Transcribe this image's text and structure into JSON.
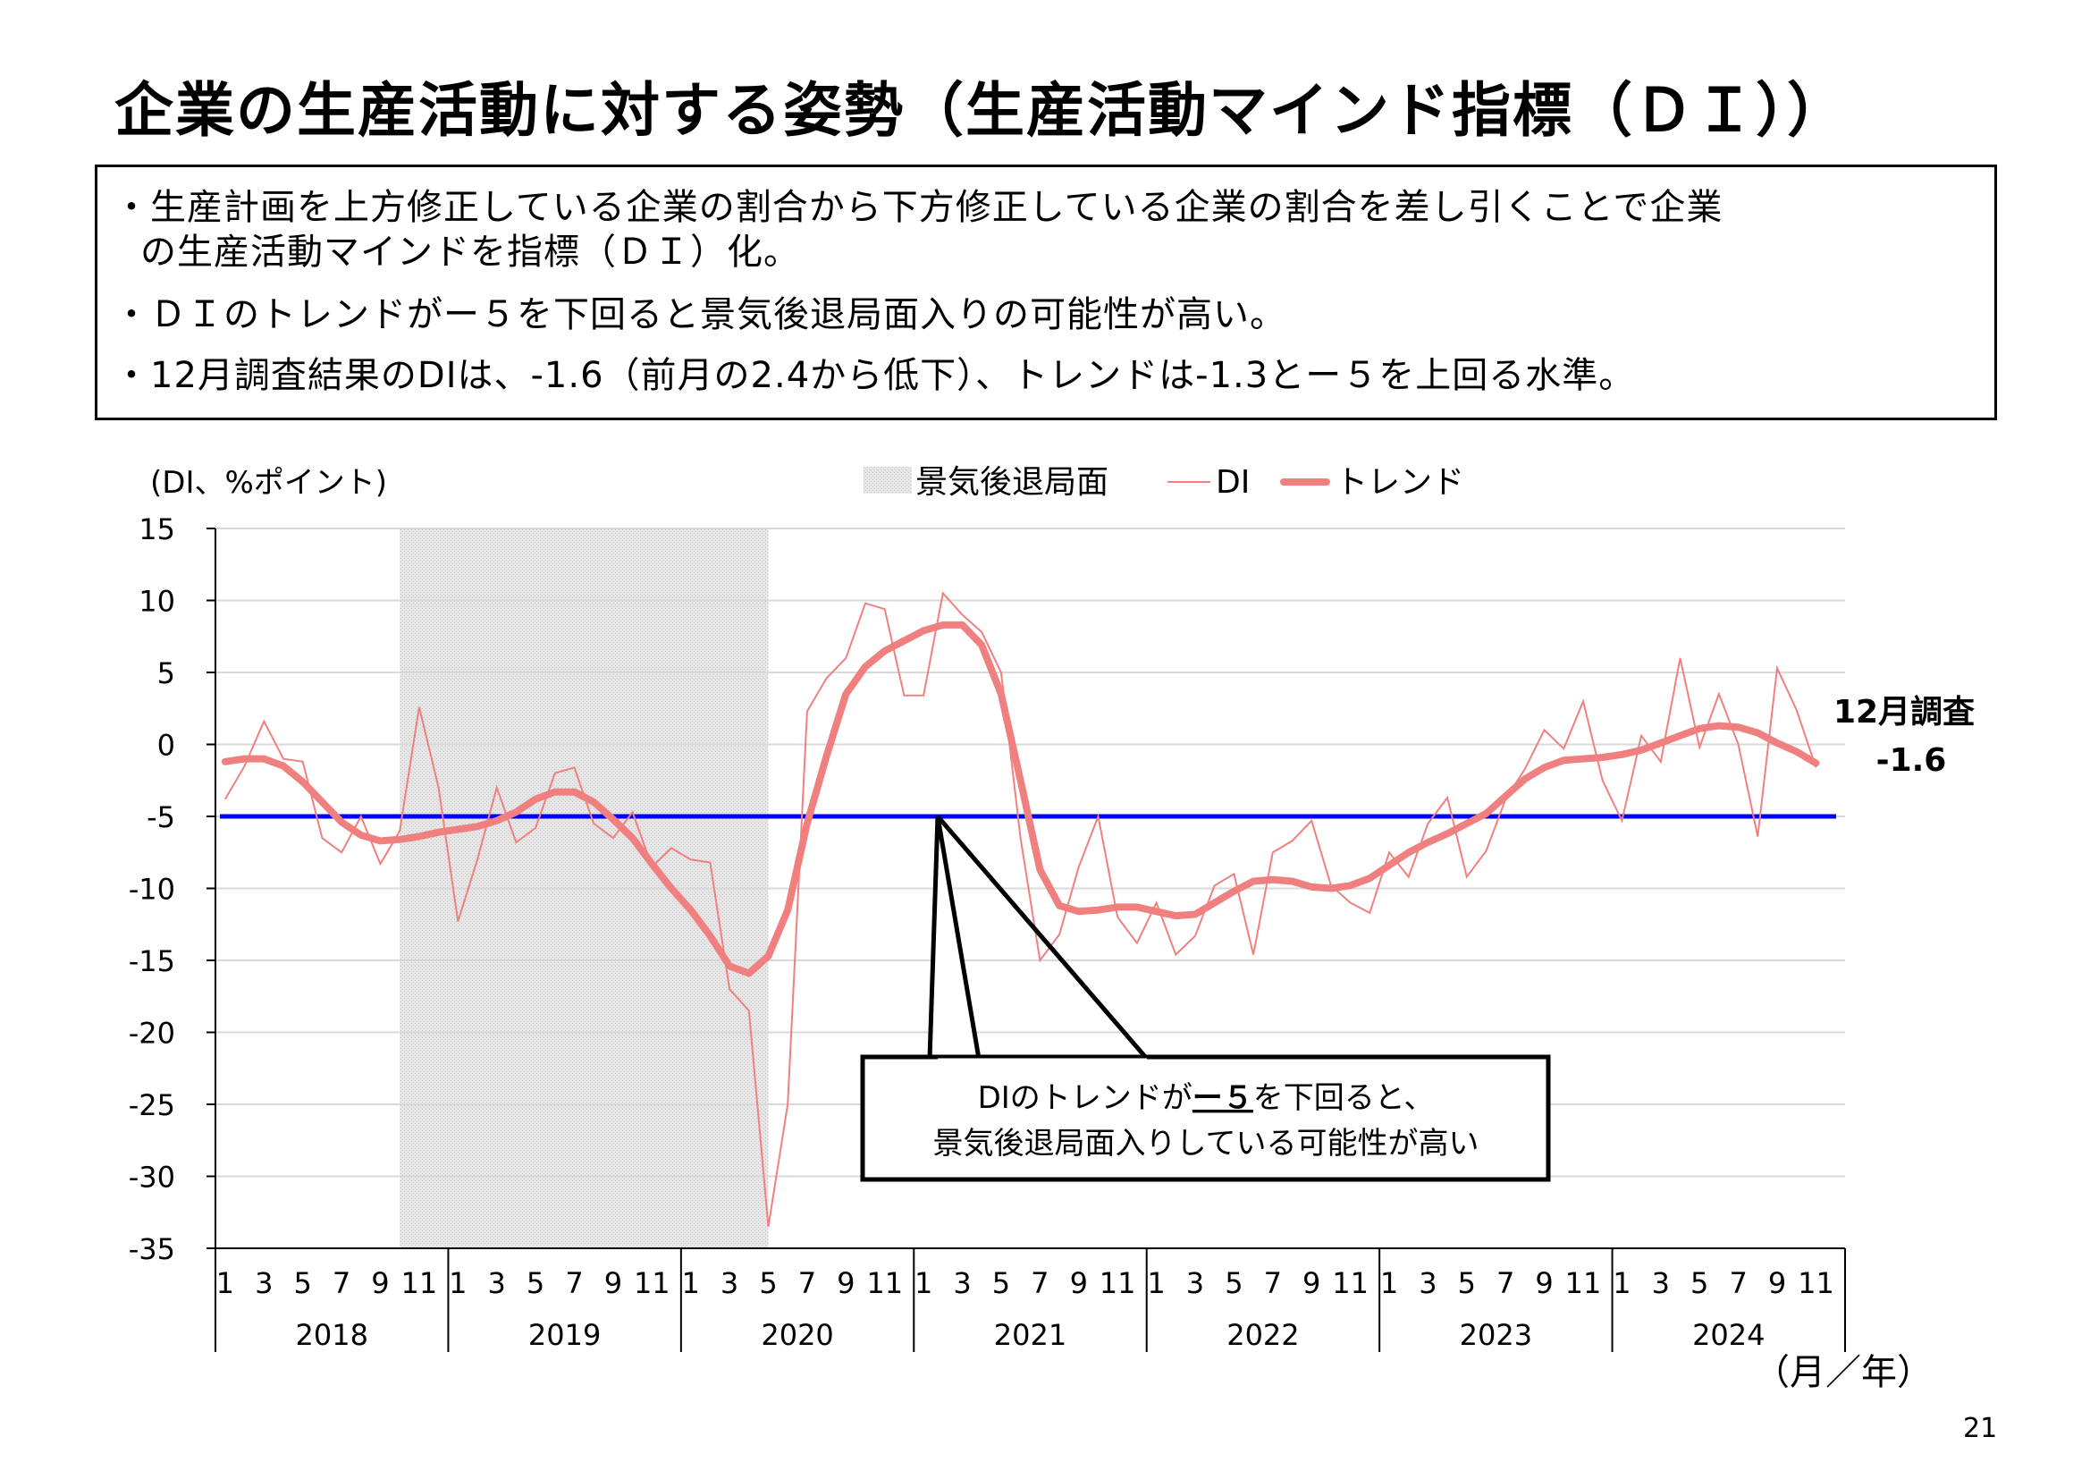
{
  "title": "企業の生産活動に対する姿勢（生産活動マインド指標（ＤＩ））",
  "notes": {
    "line1a": "・生産計画を上方修正している企業の割合から下方修正している企業の割合を差し引くことで企業",
    "line1b": "の生産活動マインドを指標（ＤＩ）化。",
    "line2": "・ＤＩのトレンドがー５を下回ると景気後退局面入りの可能性が高い。",
    "line3": "・12月調査結果のDIは、-1.6（前月の2.4から低下）、トレンドは-1.3とー５を上回る水準。"
  },
  "page_number": "21",
  "chart_data": {
    "type": "line",
    "y_unit_label": "(DI、%ポイント)",
    "x_unit_label": "（月／年）",
    "ylim": [
      -35,
      15
    ],
    "y_ticks": [
      15,
      10,
      5,
      0,
      -5,
      -10,
      -15,
      -20,
      -25,
      -30,
      -35
    ],
    "x_month_ticks": [
      "1",
      "3",
      "5",
      "7",
      "9",
      "11"
    ],
    "years": [
      "2018",
      "2019",
      "2020",
      "2021",
      "2022",
      "2023",
      "2024"
    ],
    "grid": true,
    "legend_position": "top-center",
    "legend": {
      "recession": "景気後退局面",
      "di": "DI",
      "trend": "トレンド"
    },
    "recession_period": {
      "start": "2018-10",
      "end": "2020-05"
    },
    "threshold": {
      "value": -5,
      "color": "#0000ff"
    },
    "colors": {
      "di": "#f08080",
      "trend": "#f08080",
      "threshold": "#0000ff",
      "recession": "#dcdcdc"
    },
    "series": [
      {
        "name": "DI",
        "values": [
          -3.8,
          -1.5,
          1.6,
          -1.0,
          -1.2,
          -6.5,
          -7.5,
          -5.0,
          -8.3,
          -6.0,
          2.6,
          -3.0,
          -12.3,
          -8.0,
          -3.0,
          -6.8,
          -5.8,
          -2.0,
          -1.6,
          -5.5,
          -6.5,
          -4.7,
          -8.5,
          -7.2,
          -8.0,
          -8.2,
          -17.0,
          -18.5,
          -33.5,
          -25.0,
          2.3,
          4.6,
          6.0,
          9.8,
          9.4,
          3.4,
          3.4,
          10.5,
          9.0,
          7.8,
          5.0,
          -6.5,
          -15.0,
          -13.2,
          -8.5,
          -5.0,
          -12.0,
          -13.8,
          -11.0,
          -14.6,
          -13.3,
          -9.8,
          -9.0,
          -14.6,
          -7.5,
          -6.7,
          -5.3,
          -9.8,
          -11.0,
          -11.7,
          -7.5,
          -9.2,
          -5.5,
          -3.7,
          -9.2,
          -7.4,
          -3.8,
          -1.7,
          1.0,
          -0.3,
          3.0,
          -2.5,
          -5.3,
          0.6,
          -1.2,
          6.0,
          -0.2,
          3.5,
          0.0,
          -6.4,
          5.3,
          2.4,
          -1.6
        ],
        "latest_label_1": "12月調査",
        "latest_label_2": "-1.6"
      },
      {
        "name": "トレンド",
        "values": [
          -1.2,
          -1.0,
          -1.0,
          -1.5,
          -2.6,
          -4.0,
          -5.4,
          -6.3,
          -6.7,
          -6.6,
          -6.4,
          -6.1,
          -5.9,
          -5.7,
          -5.3,
          -4.7,
          -3.8,
          -3.3,
          -3.3,
          -4.0,
          -5.2,
          -6.5,
          -8.3,
          -10.0,
          -11.5,
          -13.3,
          -15.4,
          -15.9,
          -14.7,
          -11.5,
          -5.5,
          -0.8,
          3.5,
          5.4,
          6.5,
          7.2,
          7.9,
          8.3,
          8.3,
          6.9,
          3.5,
          -2.5,
          -8.7,
          -11.2,
          -11.6,
          -11.5,
          -11.3,
          -11.3,
          -11.6,
          -11.9,
          -11.8,
          -11.0,
          -10.2,
          -9.5,
          -9.4,
          -9.5,
          -9.9,
          -10.0,
          -9.8,
          -9.3,
          -8.4,
          -7.5,
          -6.8,
          -6.2,
          -5.5,
          -4.8,
          -3.6,
          -2.4,
          -1.6,
          -1.1,
          -1.0,
          -0.9,
          -0.7,
          -0.4,
          0.1,
          0.6,
          1.1,
          1.3,
          1.2,
          0.8,
          0.1,
          -0.5,
          -1.3
        ]
      }
    ],
    "annotation": {
      "line1_a": "DIのトレンドが",
      "line1_b": "ー５",
      "line1_c": "を下回ると、",
      "line2": "景気後退局面入りしている可能性が高い"
    }
  }
}
